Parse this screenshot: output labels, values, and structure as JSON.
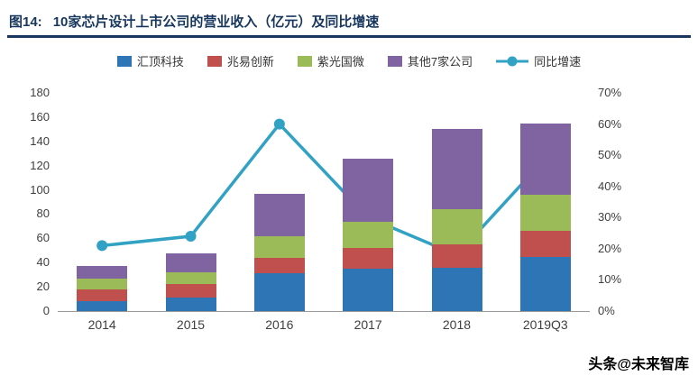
{
  "header": {
    "figure_label": "图14:",
    "title": "10家芯片设计上市公司的营业收入（亿元）及同比增速"
  },
  "watermark": "头条@未来智库",
  "theme": {
    "title_color": "#17375E",
    "axis_text_color": "#404040",
    "background": "#FFFFFF"
  },
  "chart_data": {
    "type": "bar",
    "subtype": "stacked-bar-with-line",
    "title": "10家芯片设计上市公司的营业收入（亿元）及同比增速",
    "categories": [
      "2014",
      "2015",
      "2016",
      "2017",
      "2018",
      "2019Q3"
    ],
    "series": [
      {
        "id": "huiding",
        "name": "汇顶科技",
        "type": "bar",
        "color": "#2E75B6",
        "axis": "left",
        "values": [
          8,
          11,
          31,
          35,
          36,
          45
        ]
      },
      {
        "id": "zhaoyi",
        "name": "兆易创新",
        "type": "bar",
        "color": "#C0504D",
        "axis": "left",
        "values": [
          10,
          11,
          13,
          17,
          19,
          21
        ]
      },
      {
        "id": "ziguang",
        "name": "紫光国微",
        "type": "bar",
        "color": "#9BBB59",
        "axis": "left",
        "values": [
          9,
          10,
          18,
          22,
          29,
          30
        ]
      },
      {
        "id": "others7",
        "name": "其他7家公司",
        "type": "bar",
        "color": "#8064A2",
        "axis": "left",
        "values": [
          10,
          16,
          35,
          52,
          66,
          59
        ]
      },
      {
        "id": "growth",
        "name": "同比增速",
        "type": "line",
        "color": "#31A2C3",
        "axis": "right",
        "unit": "%",
        "values": [
          21,
          24,
          60,
          30,
          18,
          49
        ]
      }
    ],
    "left_axis": {
      "min": 0,
      "max": 180,
      "step": 20,
      "tick_labels": [
        "0",
        "20",
        "40",
        "60",
        "80",
        "100",
        "120",
        "140",
        "160",
        "180"
      ]
    },
    "right_axis": {
      "min": 0,
      "max": 70,
      "step": 10,
      "format": "percent",
      "tick_labels": [
        "0%",
        "10%",
        "20%",
        "30%",
        "40%",
        "50%",
        "60%",
        "70%"
      ]
    },
    "grid": false,
    "legend_position": "top"
  }
}
